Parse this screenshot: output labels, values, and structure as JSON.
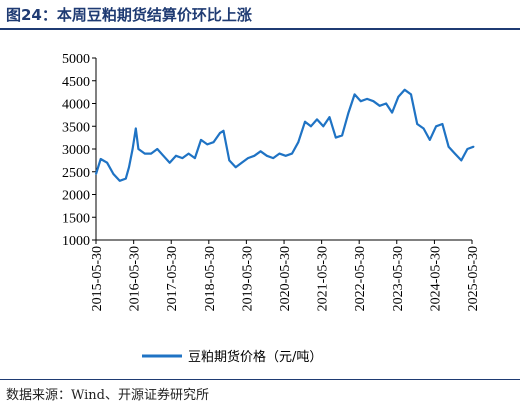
{
  "title": "图24：本周豆粕期货结算价环比上涨",
  "source": "数据来源：Wind、开源证券研究所",
  "chart_data": {
    "type": "line",
    "title": "图24：本周豆粕期货结算价环比上涨",
    "xlabel": "",
    "ylabel": "",
    "ylim": [
      1000,
      5000
    ],
    "yticks": [
      1000,
      1500,
      2000,
      2500,
      3000,
      3500,
      4000,
      4500,
      5000
    ],
    "xticks": [
      "2015-05-30",
      "2016-05-30",
      "2017-05-30",
      "2018-05-30",
      "2019-05-30",
      "2020-05-30",
      "2021-05-30",
      "2022-05-30",
      "2023-05-30",
      "2024-05-30",
      "2025-05-30"
    ],
    "grid": false,
    "legend_position": "bottom",
    "colors": {
      "series": "#1f73c4",
      "title": "#1f3b73"
    },
    "series": [
      {
        "name": "豆粕期货价格（元/吨）",
        "x": [
          "2015-05-30",
          "2015-07-15",
          "2015-09-15",
          "2015-11-15",
          "2016-01-15",
          "2016-03-15",
          "2016-04-15",
          "2016-05-20",
          "2016-06-20",
          "2016-07-15",
          "2016-09-15",
          "2016-11-15",
          "2017-01-15",
          "2017-03-15",
          "2017-05-15",
          "2017-07-15",
          "2017-09-15",
          "2017-11-15",
          "2018-01-15",
          "2018-03-15",
          "2018-05-15",
          "2018-07-15",
          "2018-09-15",
          "2018-10-20",
          "2018-12-15",
          "2019-02-15",
          "2019-04-15",
          "2019-06-15",
          "2019-08-15",
          "2019-10-15",
          "2019-12-15",
          "2020-02-15",
          "2020-04-15",
          "2020-06-15",
          "2020-08-15",
          "2020-10-15",
          "2020-12-20",
          "2021-02-15",
          "2021-04-15",
          "2021-06-15",
          "2021-08-15",
          "2021-10-15",
          "2021-12-15",
          "2022-02-15",
          "2022-04-15",
          "2022-06-15",
          "2022-08-15",
          "2022-10-15",
          "2022-12-15",
          "2023-02-15",
          "2023-04-15",
          "2023-06-15",
          "2023-08-15",
          "2023-10-15",
          "2023-12-15",
          "2024-02-15",
          "2024-04-15",
          "2024-06-15",
          "2024-08-15",
          "2024-10-15",
          "2024-12-15",
          "2025-02-15",
          "2025-04-15",
          "2025-06-15"
        ],
        "values": [
          2450,
          2780,
          2700,
          2450,
          2300,
          2350,
          2600,
          3000,
          3450,
          3000,
          2900,
          2900,
          3000,
          2850,
          2700,
          2850,
          2800,
          2900,
          2800,
          3200,
          3100,
          3150,
          3350,
          3400,
          2750,
          2600,
          2700,
          2800,
          2850,
          2950,
          2850,
          2800,
          2900,
          2850,
          2900,
          3150,
          3600,
          3500,
          3650,
          3500,
          3700,
          3250,
          3300,
          3800,
          4200,
          4050,
          4100,
          4050,
          3950,
          4000,
          3800,
          4150,
          4300,
          4200,
          3550,
          3450,
          3200,
          3500,
          3550,
          3050,
          2900,
          2750,
          3000,
          3050
        ]
      }
    ]
  }
}
